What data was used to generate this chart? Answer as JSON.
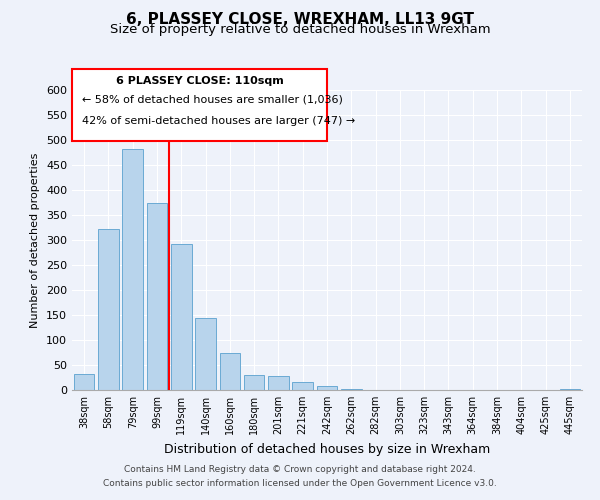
{
  "title": "6, PLASSEY CLOSE, WREXHAM, LL13 9GT",
  "subtitle": "Size of property relative to detached houses in Wrexham",
  "xlabel": "Distribution of detached houses by size in Wrexham",
  "ylabel": "Number of detached properties",
  "bar_labels": [
    "38sqm",
    "58sqm",
    "79sqm",
    "99sqm",
    "119sqm",
    "140sqm",
    "160sqm",
    "180sqm",
    "201sqm",
    "221sqm",
    "242sqm",
    "262sqm",
    "282sqm",
    "303sqm",
    "323sqm",
    "343sqm",
    "364sqm",
    "384sqm",
    "404sqm",
    "425sqm",
    "445sqm"
  ],
  "bar_values": [
    32,
    322,
    482,
    375,
    293,
    145,
    75,
    31,
    29,
    17,
    8,
    2,
    1,
    1,
    0,
    0,
    0,
    0,
    0,
    0,
    3
  ],
  "bar_color": "#b8d4ec",
  "bar_edge_color": "#6aaad4",
  "reference_line_x": 3.5,
  "reference_line_label": "6 PLASSEY CLOSE: 110sqm",
  "annotation_line1": "← 58% of detached houses are smaller (1,036)",
  "annotation_line2": "42% of semi-detached houses are larger (747) →",
  "ylim": [
    0,
    600
  ],
  "yticks": [
    0,
    50,
    100,
    150,
    200,
    250,
    300,
    350,
    400,
    450,
    500,
    550,
    600
  ],
  "footer_line1": "Contains HM Land Registry data © Crown copyright and database right 2024.",
  "footer_line2": "Contains public sector information licensed under the Open Government Licence v3.0.",
  "background_color": "#eef2fa",
  "grid_color": "#ffffff",
  "title_fontsize": 11,
  "subtitle_fontsize": 9.5
}
